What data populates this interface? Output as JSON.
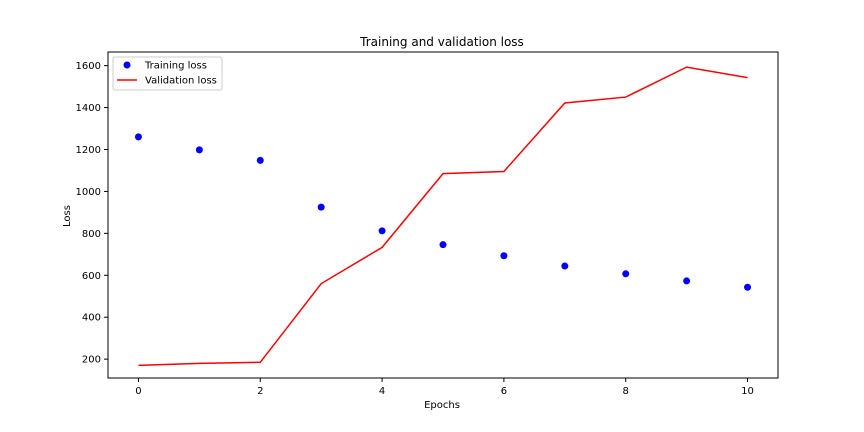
{
  "chart_data": {
    "type": "line",
    "title": "Training and validation loss",
    "xlabel": "Epochs",
    "ylabel": "Loss",
    "xlim": [
      -0.5,
      10.5
    ],
    "ylim": [
      110,
      1665
    ],
    "xticks": [
      0,
      2,
      4,
      6,
      8,
      10
    ],
    "yticks": [
      200,
      400,
      600,
      800,
      1000,
      1200,
      1400,
      1600
    ],
    "grid": false,
    "legend_position": "top-left",
    "x": [
      0,
      1,
      2,
      3,
      4,
      5,
      6,
      7,
      8,
      9,
      10
    ],
    "series": [
      {
        "name": "Training loss",
        "style": "markers",
        "color": "#0000ff",
        "values": [
          1260,
          1198,
          1148,
          925,
          812,
          746,
          693,
          644,
          607,
          573,
          543
        ]
      },
      {
        "name": "Validation loss",
        "style": "line",
        "color": "#ff0000",
        "values": [
          170,
          180,
          185,
          560,
          733,
          1085,
          1095,
          1422,
          1450,
          1593,
          1543
        ]
      }
    ]
  }
}
